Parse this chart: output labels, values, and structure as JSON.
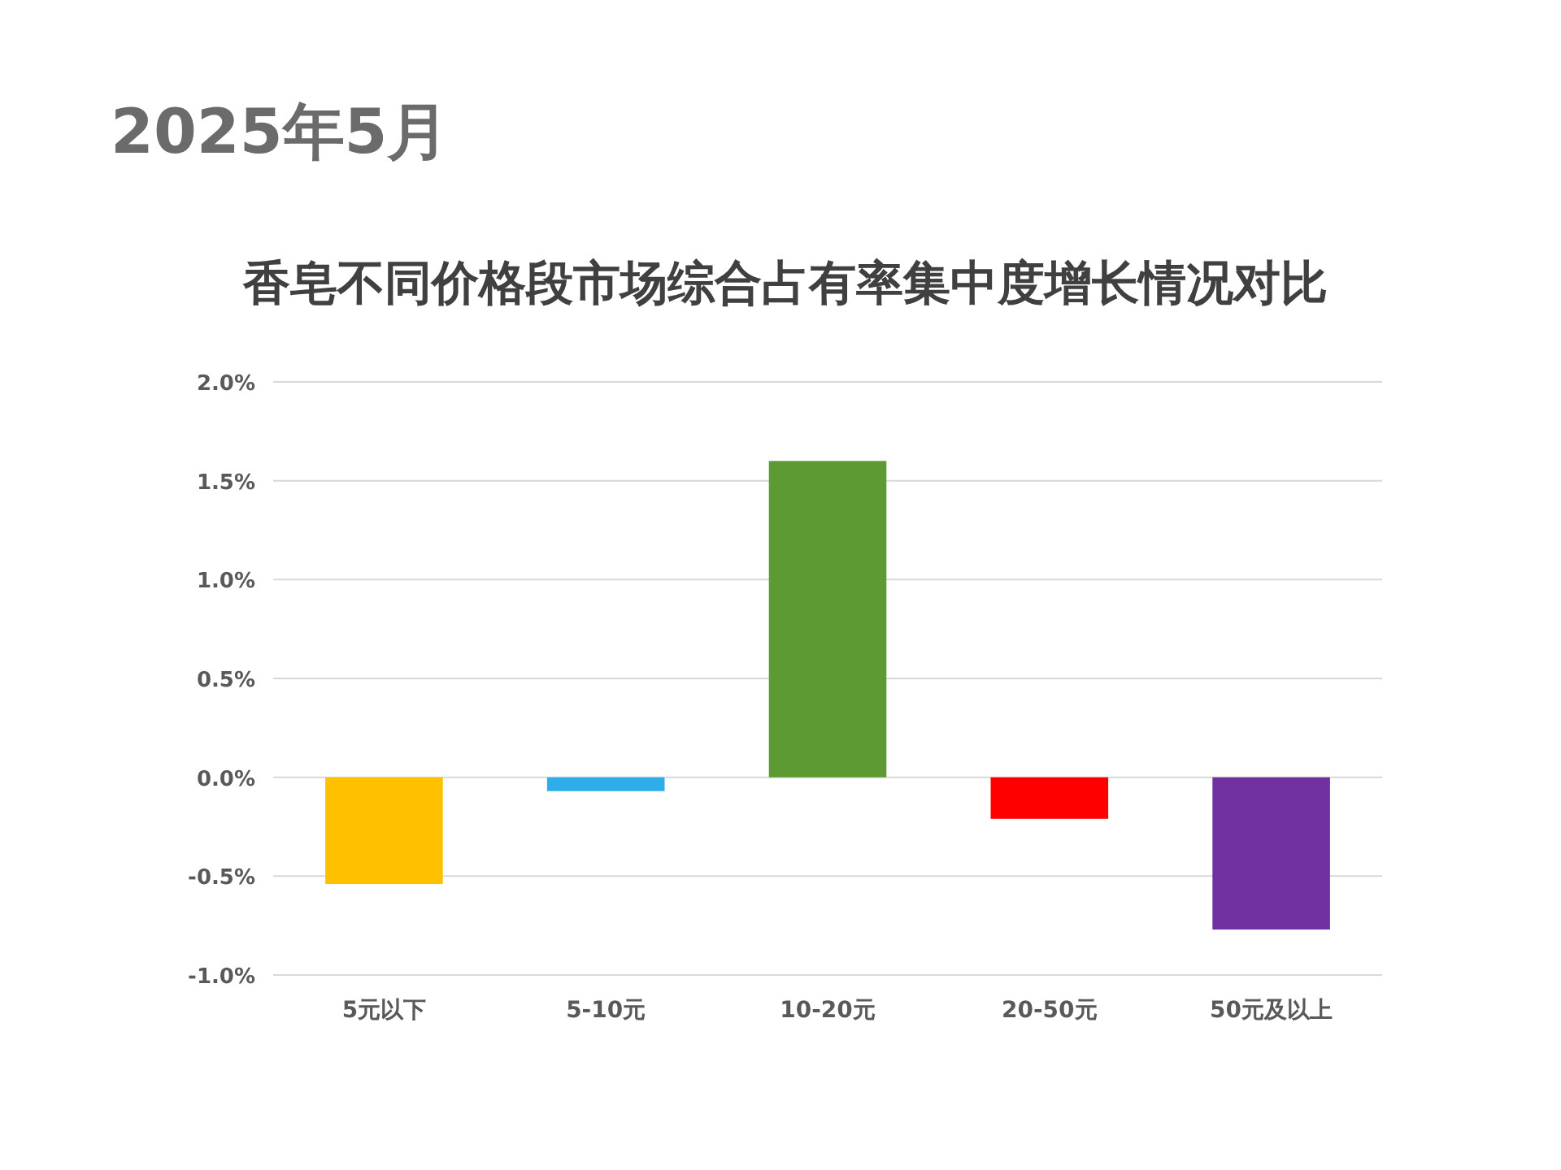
{
  "chart_data": {
    "type": "bar",
    "title": "香皂不同价格段市场综合占有率集中度增长情况对比",
    "subtitle": "2025年5月",
    "categories": [
      "5元以下",
      "5-10元",
      "10-20元",
      "20-50元",
      "50元及以上"
    ],
    "values": [
      -0.54,
      -0.07,
      1.6,
      -0.21,
      -0.77
    ],
    "colors": [
      "#ffc000",
      "#2eaee9",
      "#5e9a34",
      "#ff0000",
      "#7030a0"
    ],
    "ylim": [
      -1,
      2
    ],
    "yticks": [
      {
        "value": -1,
        "label": "-1.0%"
      },
      {
        "value": -0.5,
        "label": "-0.5%"
      },
      {
        "value": 0,
        "label": "0.0%"
      },
      {
        "value": 0.5,
        "label": "0.5%"
      },
      {
        "value": 1,
        "label": "1.0%"
      },
      {
        "value": 1.5,
        "label": "1.5%"
      },
      {
        "value": 2,
        "label": "2.0%"
      }
    ],
    "grid": "y"
  }
}
